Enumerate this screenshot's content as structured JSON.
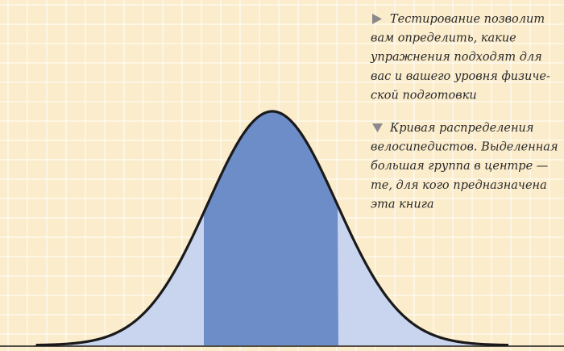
{
  "captions": [
    {
      "lines": [
        "Тестирование позволит",
        "вам определить, какие",
        "упражнения подходят для",
        "вас и вашего уровня физиче-",
        "ской подготовки"
      ]
    },
    {
      "lines": [
        "Кривая распределения",
        "велосипедистов. Выделенная",
        "большая группа в центре —",
        "те, для кого предназначена",
        "эта книга"
      ]
    }
  ]
}
